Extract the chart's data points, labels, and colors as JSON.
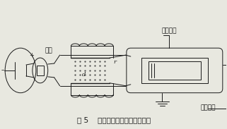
{
  "title": "图 5    测阴极射线的荷质比示意图",
  "label_cidianchang": "磁场",
  "label_jiedianliuji": "接电流计",
  "label_jiejingdianji": "接静电计",
  "label_r": "r",
  "label_d": "d",
  "label_plus": "+",
  "label_minus": "–",
  "bg_color": "#e8e8e0",
  "line_color": "#1a1a1a",
  "dot_color": "#444444",
  "title_fontsize": 7.5,
  "label_fontsize": 6.5,
  "small_label_fontsize": 6
}
